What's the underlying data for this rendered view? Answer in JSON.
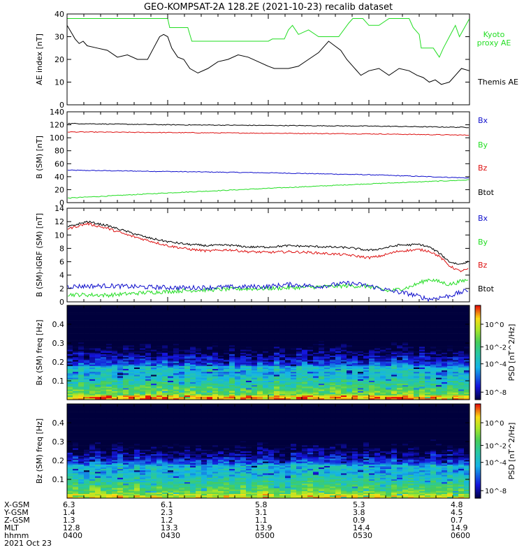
{
  "title": "GEO-KOMPSAT-2A 128.2E (2021-10-23) recalib dataset",
  "colors": {
    "black": "#000000",
    "green": "#22dd22",
    "red": "#dd1111",
    "blue": "#1010cc",
    "frame": "#000000"
  },
  "chart_data": [
    {
      "type": "line",
      "ylabel": "AE index [nT]",
      "ylim": [
        0,
        40
      ],
      "yticks": [
        0,
        10,
        20,
        30,
        40
      ],
      "x_hours": [
        4.0,
        6.0
      ],
      "series": [
        {
          "name": "Kyoto proxy AE",
          "label_lines": [
            "Kyoto",
            "proxy AE"
          ],
          "color": "green",
          "x": [
            4.0,
            4.5,
            4.51,
            4.6,
            4.62,
            5.0,
            5.02,
            5.08,
            5.1,
            5.12,
            5.15,
            5.2,
            5.25,
            5.3,
            5.35,
            5.4,
            5.42,
            5.47,
            5.5,
            5.55,
            5.6,
            5.62,
            5.65,
            5.7,
            5.72,
            5.75,
            5.76,
            5.79,
            5.82,
            5.85,
            5.87,
            5.9,
            5.93,
            5.95,
            6.0
          ],
          "y": [
            38,
            38,
            34,
            34,
            28,
            28,
            29,
            29,
            33,
            35,
            31,
            33,
            30,
            30,
            30,
            36,
            38,
            38,
            35,
            35,
            38,
            38,
            38,
            38,
            34,
            31,
            25,
            25,
            25,
            21,
            25,
            30,
            35,
            30,
            38
          ]
        },
        {
          "name": "Themis AE",
          "label_lines": [
            "Themis AE"
          ],
          "color": "black",
          "x": [
            4.0,
            4.02,
            4.04,
            4.06,
            4.08,
            4.1,
            4.15,
            4.2,
            4.25,
            4.3,
            4.35,
            4.4,
            4.43,
            4.46,
            4.48,
            4.5,
            4.52,
            4.55,
            4.58,
            4.61,
            4.65,
            4.7,
            4.75,
            4.8,
            4.85,
            4.9,
            4.95,
            5.0,
            5.03,
            5.06,
            5.1,
            5.15,
            5.2,
            5.25,
            5.3,
            5.33,
            5.36,
            5.39,
            5.42,
            5.46,
            5.5,
            5.55,
            5.6,
            5.65,
            5.7,
            5.74,
            5.77,
            5.8,
            5.83,
            5.86,
            5.9,
            5.93,
            5.96,
            6.0
          ],
          "y": [
            35,
            32,
            29,
            27,
            28,
            26,
            25,
            24,
            21,
            22,
            20,
            20,
            25,
            30,
            31,
            30,
            25,
            21,
            20,
            16,
            14,
            16,
            19,
            20,
            22,
            21,
            19,
            17,
            16,
            16,
            16,
            17,
            20,
            23,
            28,
            26,
            24,
            20,
            17,
            13,
            15,
            16,
            13,
            16,
            15,
            13,
            12,
            10,
            11,
            9,
            10,
            13,
            16,
            15
          ]
        }
      ]
    },
    {
      "type": "line",
      "ylabel": "B (SM) [nT]",
      "ylim": [
        0,
        140
      ],
      "yticks": [
        0,
        20,
        40,
        60,
        80,
        100,
        120,
        140
      ],
      "x_hours": [
        4.0,
        6.0
      ],
      "series": [
        {
          "name": "Bx",
          "color": "blue",
          "x": [
            4.0,
            4.5,
            5.0,
            5.5,
            6.0
          ],
          "y": [
            50,
            48,
            46,
            43,
            38
          ]
        },
        {
          "name": "By",
          "color": "green",
          "x": [
            4.0,
            4.5,
            5.0,
            5.5,
            6.0
          ],
          "y": [
            7,
            15,
            22,
            29,
            35
          ]
        },
        {
          "name": "Bz",
          "color": "red",
          "x": [
            4.0,
            4.5,
            5.0,
            5.5,
            6.0
          ],
          "y": [
            109,
            108,
            107,
            106,
            104
          ]
        },
        {
          "name": "Btot",
          "color": "black",
          "x": [
            4.0,
            4.5,
            5.0,
            5.5,
            6.0
          ],
          "y": [
            122,
            120,
            119,
            118,
            116
          ]
        }
      ]
    },
    {
      "type": "line",
      "ylabel": "B (SM)-IGRF (SM) [nT]",
      "ylim": [
        0,
        14
      ],
      "yticks": [
        0,
        2,
        4,
        6,
        8,
        10,
        12,
        14
      ],
      "x_hours": [
        4.0,
        6.0
      ],
      "series": [
        {
          "name": "Bx",
          "color": "blue",
          "x": [
            4.0,
            4.2,
            4.4,
            4.6,
            4.8,
            5.0,
            5.1,
            5.25,
            5.4,
            5.5,
            5.6,
            5.7,
            5.8,
            5.9,
            6.0
          ],
          "y": [
            2.3,
            2.4,
            2.2,
            2.1,
            2.2,
            2.3,
            2.6,
            2.3,
            2.8,
            2.4,
            1.7,
            1.2,
            0.4,
            0.9,
            1.8
          ]
        },
        {
          "name": "By",
          "color": "green",
          "x": [
            4.0,
            4.2,
            4.4,
            4.6,
            4.8,
            5.0,
            5.2,
            5.4,
            5.5,
            5.6,
            5.7,
            5.8,
            5.9,
            6.0
          ],
          "y": [
            1.1,
            1.0,
            1.4,
            1.7,
            1.9,
            2.0,
            2.2,
            2.4,
            2.3,
            1.6,
            2.2,
            3.4,
            2.6,
            3.4
          ]
        },
        {
          "name": "Bz",
          "color": "red",
          "x": [
            4.0,
            4.05,
            4.1,
            4.2,
            4.3,
            4.4,
            4.5,
            4.6,
            4.7,
            4.8,
            4.9,
            5.0,
            5.1,
            5.2,
            5.3,
            5.4,
            5.5,
            5.55,
            5.6,
            5.65,
            5.7,
            5.75,
            5.8,
            5.85,
            5.9,
            5.95,
            6.0
          ],
          "y": [
            10.9,
            11.3,
            11.7,
            11.0,
            10.0,
            9.2,
            8.4,
            7.9,
            7.6,
            7.8,
            7.5,
            7.4,
            7.5,
            7.4,
            7.2,
            7.0,
            6.6,
            6.8,
            7.2,
            7.6,
            7.7,
            7.8,
            7.6,
            6.8,
            5.4,
            4.6,
            4.9
          ]
        },
        {
          "name": "Btot",
          "color": "black",
          "x": [
            4.0,
            4.05,
            4.1,
            4.2,
            4.3,
            4.4,
            4.5,
            4.6,
            4.7,
            4.8,
            4.9,
            5.0,
            5.1,
            5.2,
            5.3,
            5.4,
            5.5,
            5.55,
            5.6,
            5.65,
            5.7,
            5.75,
            5.8,
            5.85,
            5.9,
            5.95,
            6.0
          ],
          "y": [
            11.2,
            11.6,
            12.0,
            11.4,
            10.5,
            9.6,
            9.0,
            8.6,
            8.4,
            8.5,
            8.2,
            8.2,
            8.4,
            8.3,
            8.2,
            8.1,
            7.7,
            7.9,
            8.2,
            8.5,
            8.5,
            8.6,
            8.2,
            7.3,
            6.0,
            5.6,
            6.1
          ]
        }
      ]
    },
    {
      "type": "heatmap",
      "ylabel": "Bx (SM) freq [Hz]",
      "ylim": [
        0,
        0.5
      ],
      "yticks": [
        0.1,
        0.2,
        0.3,
        0.4
      ],
      "colorbar_label": "PSD [nT^2/Hz]",
      "colorbar_ticks": [
        "10^-8",
        "10^-4",
        "10^-2",
        "10^0"
      ]
    },
    {
      "type": "heatmap",
      "ylabel": "Bz (SM) freq [Hz]",
      "ylim": [
        0,
        0.5
      ],
      "yticks": [
        0.1,
        0.2,
        0.3,
        0.4
      ],
      "colorbar_label": "PSD [nT^2/Hz]",
      "colorbar_ticks": [
        "10^-8",
        "10^-4",
        "10^-2",
        "10^0"
      ]
    }
  ],
  "ephemeris": {
    "row_labels": [
      "X-GSM",
      "Y-GSM",
      "Z-GSM",
      "MLT",
      "hhmm"
    ],
    "date_label": "2021 Oct 23",
    "columns": [
      {
        "values": [
          "6.3",
          "1.4",
          "1.3",
          "12.8",
          "0400"
        ]
      },
      {
        "values": [
          "6.1",
          "2.3",
          "1.2",
          "13.3",
          "0430"
        ]
      },
      {
        "values": [
          "5.8",
          "3.1",
          "1.1",
          "13.9",
          "0500"
        ]
      },
      {
        "values": [
          "5.3",
          "3.8",
          "0.9",
          "14.4",
          "0530"
        ]
      },
      {
        "values": [
          "4.8",
          "4.5",
          "0.7",
          "14.9",
          "0600"
        ]
      }
    ]
  }
}
